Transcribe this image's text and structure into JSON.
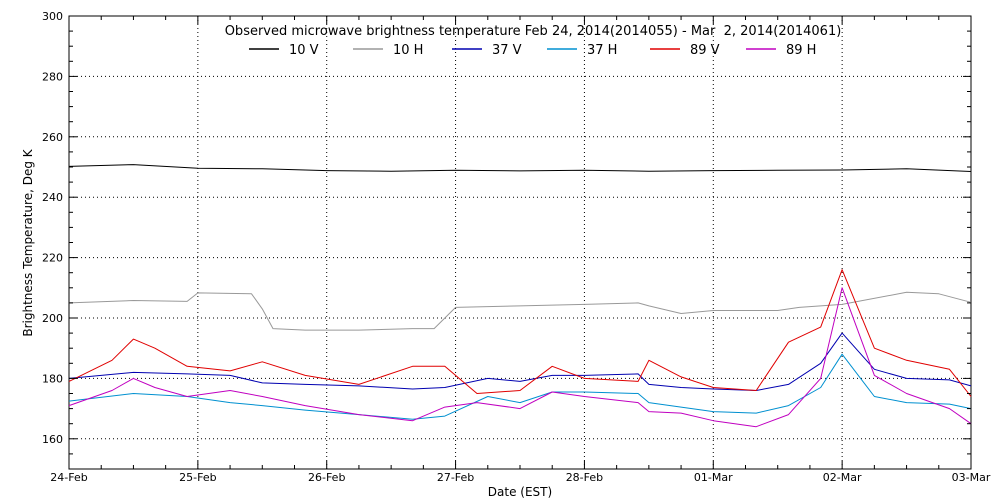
{
  "chart_data": {
    "type": "line",
    "title": "Observed microwave brightness temperature Feb 24, 2014(2014055) - Mar  2, 2014(2014061)",
    "xlabel": "Date (EST)",
    "ylabel": "Brightness Temperature, Deg K",
    "ylim": [
      150,
      300
    ],
    "xlim": [
      "2014-02-24",
      "2014-03-03"
    ],
    "x_tick_labels": [
      "24-Feb",
      "25-Feb",
      "26-Feb",
      "27-Feb",
      "28-Feb",
      "01-Mar",
      "02-Mar",
      "03-Mar"
    ],
    "y_ticks": [
      160,
      180,
      200,
      220,
      240,
      260,
      280,
      300
    ],
    "grid": true,
    "legend_placement": "top",
    "series": [
      {
        "name": "10 V",
        "color": "#000000",
        "x": [
          "2014-02-24T00:00",
          "2014-02-24T12:00",
          "2014-02-25T00:00",
          "2014-02-25T12:00",
          "2014-02-26T00:00",
          "2014-02-26T12:00",
          "2014-02-27T00:00",
          "2014-02-27T12:00",
          "2014-02-28T00:00",
          "2014-02-28T12:00",
          "2014-03-01T00:00",
          "2014-03-01T12:00",
          "2014-03-02T00:00",
          "2014-03-02T12:00",
          "2014-03-03T00:00"
        ],
        "values": [
          250.2,
          250.8,
          249.6,
          249.4,
          248.8,
          248.6,
          248.9,
          248.7,
          248.9,
          248.6,
          248.8,
          248.9,
          249.0,
          249.4,
          248.5
        ]
      },
      {
        "name": "10 H",
        "color": "#999999",
        "x": [
          "2014-02-24T00:00",
          "2014-02-24T12:00",
          "2014-02-24T22:00",
          "2014-02-25T00:00",
          "2014-02-25T10:00",
          "2014-02-25T12:00",
          "2014-02-25T14:00",
          "2014-02-25T20:00",
          "2014-02-26T06:00",
          "2014-02-26T16:00",
          "2014-02-26T20:00",
          "2014-02-27T00:00",
          "2014-02-27T12:00",
          "2014-02-28T00:00",
          "2014-02-28T10:00",
          "2014-02-28T12:00",
          "2014-02-28T18:00",
          "2014-03-01T00:00",
          "2014-03-01T12:00",
          "2014-03-01T16:00",
          "2014-03-02T00:00",
          "2014-03-02T12:00",
          "2014-03-02T18:00",
          "2014-03-03T00:00"
        ],
        "values": [
          205.0,
          205.8,
          205.5,
          208.3,
          208.0,
          203.0,
          196.5,
          196.0,
          196.0,
          196.5,
          196.5,
          203.5,
          204.0,
          204.5,
          205.0,
          204.0,
          201.5,
          202.5,
          202.5,
          203.5,
          204.5,
          208.5,
          208.0,
          205.2
        ]
      },
      {
        "name": "37 V",
        "color": "#0000b0",
        "x": [
          "2014-02-24T00:00",
          "2014-02-24T12:00",
          "2014-02-24T22:00",
          "2014-02-25T06:00",
          "2014-02-25T12:00",
          "2014-02-25T20:00",
          "2014-02-26T06:00",
          "2014-02-26T16:00",
          "2014-02-26T22:00",
          "2014-02-27T06:00",
          "2014-02-27T12:00",
          "2014-02-27T18:00",
          "2014-02-28T00:00",
          "2014-02-28T10:00",
          "2014-02-28T12:00",
          "2014-02-28T18:00",
          "2014-03-01T00:00",
          "2014-03-01T08:00",
          "2014-03-01T14:00",
          "2014-03-01T20:00",
          "2014-03-02T00:00",
          "2014-03-02T06:00",
          "2014-03-02T12:00",
          "2014-03-02T20:00",
          "2014-03-03T00:00"
        ],
        "values": [
          180.0,
          182.0,
          181.5,
          181.0,
          178.5,
          178.0,
          177.5,
          176.5,
          177.0,
          180.0,
          179.0,
          181.0,
          181.0,
          181.5,
          178.0,
          177.0,
          176.5,
          176.0,
          178.0,
          185.0,
          195.0,
          183.0,
          180.0,
          179.5,
          177.5
        ]
      },
      {
        "name": "37 H",
        "color": "#0090d0",
        "x": [
          "2014-02-24T00:00",
          "2014-02-24T12:00",
          "2014-02-24T22:00",
          "2014-02-25T06:00",
          "2014-02-25T12:00",
          "2014-02-25T20:00",
          "2014-02-26T06:00",
          "2014-02-26T16:00",
          "2014-02-26T22:00",
          "2014-02-27T06:00",
          "2014-02-27T12:00",
          "2014-02-27T18:00",
          "2014-02-28T00:00",
          "2014-02-28T10:00",
          "2014-02-28T12:00",
          "2014-02-28T18:00",
          "2014-03-01T00:00",
          "2014-03-01T08:00",
          "2014-03-01T14:00",
          "2014-03-01T20:00",
          "2014-03-02T00:00",
          "2014-03-02T06:00",
          "2014-03-02T12:00",
          "2014-03-02T20:00",
          "2014-03-03T00:00"
        ],
        "values": [
          172.5,
          175.0,
          174.0,
          172.0,
          171.0,
          169.5,
          168.0,
          166.5,
          167.5,
          174.0,
          172.0,
          175.5,
          175.5,
          175.0,
          172.0,
          170.5,
          169.0,
          168.5,
          171.0,
          177.0,
          188.0,
          174.0,
          172.0,
          171.5,
          170.0
        ]
      },
      {
        "name": "89 V",
        "color": "#e00000",
        "x": [
          "2014-02-24T00:00",
          "2014-02-24T08:00",
          "2014-02-24T12:00",
          "2014-02-24T16:00",
          "2014-02-24T22:00",
          "2014-02-25T06:00",
          "2014-02-25T12:00",
          "2014-02-25T20:00",
          "2014-02-26T06:00",
          "2014-02-26T16:00",
          "2014-02-26T22:00",
          "2014-02-27T04:00",
          "2014-02-27T12:00",
          "2014-02-27T18:00",
          "2014-02-28T00:00",
          "2014-02-28T10:00",
          "2014-02-28T12:00",
          "2014-02-28T18:00",
          "2014-03-01T00:00",
          "2014-03-01T08:00",
          "2014-03-01T14:00",
          "2014-03-01T20:00",
          "2014-03-02T00:00",
          "2014-03-02T06:00",
          "2014-03-02T12:00",
          "2014-03-02T20:00",
          "2014-03-03T00:00"
        ],
        "values": [
          179.0,
          186.0,
          193.0,
          190.0,
          184.0,
          182.5,
          185.5,
          181.0,
          178.0,
          184.0,
          184.0,
          175.0,
          176.0,
          184.0,
          180.0,
          179.0,
          186.0,
          180.5,
          177.0,
          176.0,
          192.0,
          197.0,
          216.0,
          190.0,
          186.0,
          183.0,
          174.0
        ]
      },
      {
        "name": "89 H",
        "color": "#c000c0",
        "x": [
          "2014-02-24T00:00",
          "2014-02-24T08:00",
          "2014-02-24T12:00",
          "2014-02-24T16:00",
          "2014-02-24T22:00",
          "2014-02-25T06:00",
          "2014-02-25T12:00",
          "2014-02-25T20:00",
          "2014-02-26T06:00",
          "2014-02-26T16:00",
          "2014-02-26T22:00",
          "2014-02-27T04:00",
          "2014-02-27T12:00",
          "2014-02-27T18:00",
          "2014-02-28T00:00",
          "2014-02-28T10:00",
          "2014-02-28T12:00",
          "2014-02-28T18:00",
          "2014-03-01T00:00",
          "2014-03-01T08:00",
          "2014-03-01T14:00",
          "2014-03-01T20:00",
          "2014-03-02T00:00",
          "2014-03-02T06:00",
          "2014-03-02T12:00",
          "2014-03-02T20:00",
          "2014-03-03T00:00"
        ],
        "values": [
          171.0,
          176.0,
          180.0,
          177.0,
          174.0,
          176.0,
          174.0,
          171.0,
          168.0,
          166.0,
          170.5,
          172.0,
          170.0,
          175.5,
          174.0,
          172.0,
          169.0,
          168.5,
          166.0,
          164.0,
          168.0,
          180.0,
          210.0,
          181.0,
          175.0,
          170.0,
          165.0
        ]
      }
    ]
  }
}
